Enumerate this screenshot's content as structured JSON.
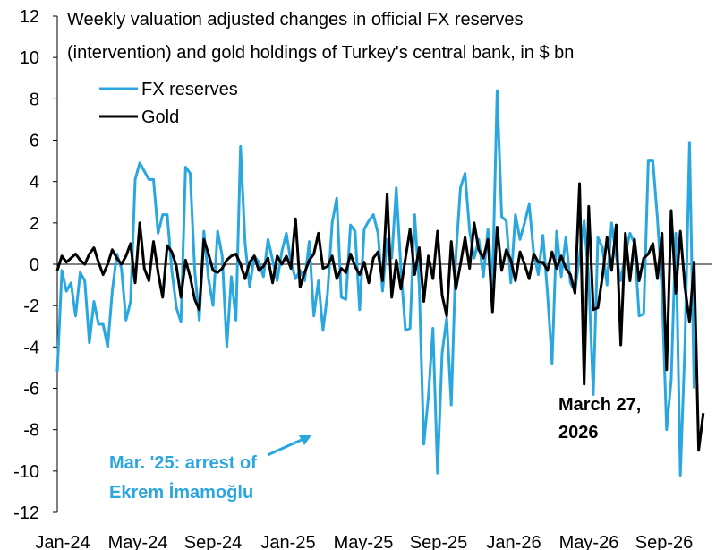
{
  "chart_data": {
    "type": "line",
    "title_lines": [
      "Weekly valuation adjusted changes in official FX reserves",
      "(intervention) and gold holdings of Turkey's central bank, in $ bn"
    ],
    "xlabel": "",
    "ylabel": "",
    "ylim": [
      -12,
      12
    ],
    "y_ticks": [
      "12",
      "10",
      "8",
      "6",
      "4",
      "2",
      "0",
      "-2",
      "-4",
      "-6",
      "-8",
      "-10",
      "-12"
    ],
    "x_tick_labels": [
      "Jan-24",
      "May-24",
      "Sep-24",
      "Jan-25",
      "May-25",
      "Sep-25",
      "Jan-26",
      "May-26",
      "Sep-26"
    ],
    "x_unit": "weeks since 2024-01-05",
    "x_range_weeks": [
      0,
      143
    ],
    "series": [
      {
        "name": "FX reserves",
        "color": "#2BA7E0",
        "values": [
          -5.2,
          -0.3,
          -1.3,
          -0.9,
          -2.5,
          -0.4,
          -0.8,
          -3.8,
          -1.8,
          -2.9,
          -2.9,
          -4.0,
          -1.3,
          0.5,
          -0.2,
          -2.7,
          -1.8,
          4.1,
          4.9,
          4.5,
          4.1,
          4.1,
          1.5,
          2.4,
          2.4,
          -0.3,
          -2.1,
          -2.8,
          4.7,
          4.4,
          -0.3,
          -2.7,
          1.6,
          -0.7,
          -2.0,
          1.6,
          0.4,
          -4.0,
          -0.6,
          -2.7,
          5.7,
          1.0,
          -1.1,
          0.4,
          0.1,
          -0.6,
          1.2,
          0.2,
          -0.8,
          0.6,
          1.5,
          0.1,
          -0.7,
          -0.3,
          -0.8,
          1.1,
          -2.5,
          -0.8,
          -3.2,
          -1.4,
          2.0,
          3.2,
          -1.6,
          -1.7,
          1.9,
          1.6,
          -2.2,
          1.7,
          2.1,
          2.4,
          1.5,
          -1.3,
          1.2,
          0.3,
          3.7,
          -0.2,
          -3.2,
          -3.1,
          2.4,
          -1.0,
          -8.7,
          -6.4,
          -3.1,
          -10.1,
          -4.3,
          -2.6,
          -6.8,
          0.4,
          3.7,
          4.4,
          1.6,
          0.3,
          1.2,
          -0.6,
          1.7,
          -1.0,
          8.4,
          2.3,
          2.1,
          -0.9,
          2.4,
          1.2,
          2.0,
          2.9,
          0.5,
          -0.5,
          1.4,
          -1.4,
          -4.8,
          1.6,
          -0.6,
          1.3,
          -0.9,
          -1.3,
          0.4,
          2.1,
          -0.7,
          -6.3,
          1.3,
          0.8,
          -1.0,
          2.0,
          0.4,
          -0.8,
          0.5,
          1.5,
          1.0,
          -2.5,
          -2.4,
          5.0,
          5.0,
          2.2,
          -1.3,
          -8.0,
          -5.6,
          1.5,
          -10.2,
          -3.9,
          5.9,
          -6.0
        ]
      },
      {
        "name": "Gold",
        "color": "#000000",
        "values": [
          -0.3,
          0.4,
          0.1,
          0.3,
          0.5,
          0.2,
          0.0,
          0.5,
          0.8,
          0.1,
          -0.5,
          0.0,
          0.7,
          0.3,
          0.0,
          0.4,
          1.0,
          -0.9,
          2.0,
          -0.2,
          -0.8,
          1.1,
          -0.4,
          -1.6,
          0.9,
          0.6,
          -0.1,
          -1.6,
          0.2,
          -0.6,
          -1.7,
          -2.2,
          1.2,
          0.5,
          -0.3,
          -0.4,
          -0.2,
          0.2,
          0.4,
          0.5,
          0.0,
          -0.7,
          0.1,
          0.4,
          -0.3,
          -0.1,
          0.3,
          -0.9,
          0.4,
          0.0,
          0.4,
          -0.2,
          2.2,
          -1.1,
          -0.4,
          0.2,
          0.5,
          1.5,
          -0.2,
          -0.1,
          0.4,
          -0.7,
          -0.2,
          -0.4,
          0.5,
          -0.1,
          -0.5,
          0.1,
          -0.9,
          0.3,
          0.6,
          -0.8,
          3.4,
          -1.6,
          0.2,
          -1.2,
          0.3,
          1.7,
          -0.5,
          0.8,
          -1.8,
          0.4,
          -0.7,
          1.6,
          -1.5,
          -2.5,
          1.1,
          -1.2,
          0.0,
          1.3,
          -0.2,
          2.0,
          0.7,
          0.3,
          1.2,
          -2.3,
          1.8,
          -0.3,
          0.7,
          0.2,
          -0.8,
          0.6,
          0.0,
          -0.7,
          0.5,
          0.1,
          0.1,
          -0.3,
          0.6,
          -0.2,
          0.4,
          -0.2,
          -0.5,
          -1.4,
          3.9,
          -5.8,
          2.8,
          -2.2,
          -2.1,
          -0.6,
          1.3,
          -0.3,
          1.9,
          -3.9,
          1.5,
          -0.8,
          1.2,
          -0.8,
          0.3,
          0.5,
          1.0,
          -0.7,
          1.5,
          -5.1,
          2.6,
          -1.4,
          1.6,
          -1.1,
          -2.8,
          0.1,
          -9.0,
          -7.2
        ]
      }
    ],
    "annotations": [
      {
        "lines": [
          "Mar. '25: arrest of",
          "Ekrem İmamoğlu"
        ],
        "color": "#2BA7E0"
      },
      {
        "lines": [
          "March 27,",
          "2026"
        ],
        "color": "#000000"
      }
    ]
  }
}
